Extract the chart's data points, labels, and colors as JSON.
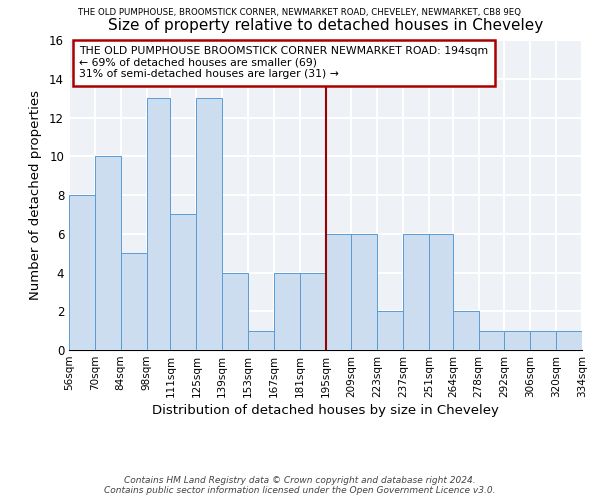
{
  "title": "Size of property relative to detached houses in Cheveley",
  "suptitle": "THE OLD PUMPHOUSE, BROOMSTICK CORNER, NEWMARKET ROAD, CHEVELEY, NEWMARKET, CB8 9EQ",
  "xlabel": "Distribution of detached houses by size in Cheveley",
  "ylabel": "Number of detached properties",
  "bin_edges": [
    56,
    70,
    84,
    98,
    111,
    125,
    139,
    153,
    167,
    181,
    195,
    209,
    223,
    237,
    251,
    264,
    278,
    292,
    306,
    320,
    334
  ],
  "bar_heights": [
    8,
    10,
    5,
    13,
    7,
    13,
    4,
    1,
    4,
    4,
    6,
    6,
    2,
    6,
    6,
    2,
    1,
    1,
    1,
    1
  ],
  "bar_color": "#ccddef",
  "bar_edgecolor": "#5b9bd5",
  "vline_x": 195,
  "vline_color": "#990000",
  "ylim": [
    0,
    16
  ],
  "yticks": [
    0,
    2,
    4,
    6,
    8,
    10,
    12,
    14,
    16
  ],
  "annotation_text": "THE OLD PUMPHOUSE BROOMSTICK CORNER NEWMARKET ROAD: 194sqm\n← 69% of detached houses are smaller (69)\n31% of semi-detached houses are larger (31) →",
  "annotation_box_edgecolor": "#aa0000",
  "footer_text": "Contains HM Land Registry data © Crown copyright and database right 2024.\nContains public sector information licensed under the Open Government Licence v3.0.",
  "background_color": "#eef2f7",
  "grid_color": "#d8dde8",
  "tick_labels": [
    "56sqm",
    "70sqm",
    "84sqm",
    "98sqm",
    "111sqm",
    "125sqm",
    "139sqm",
    "153sqm",
    "167sqm",
    "181sqm",
    "195sqm",
    "209sqm",
    "223sqm",
    "237sqm",
    "251sqm",
    "264sqm",
    "278sqm",
    "292sqm",
    "306sqm",
    "320sqm",
    "334sqm"
  ]
}
